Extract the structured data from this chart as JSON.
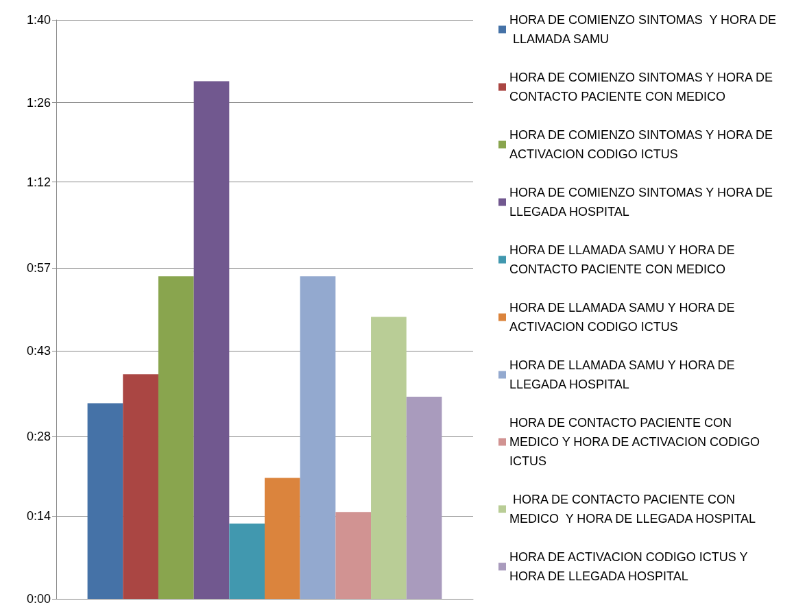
{
  "chart_data": {
    "type": "bar",
    "categories": [
      null
    ],
    "ylim": [
      0,
      100
    ],
    "yticks": [
      {
        "value": 0,
        "label": "0:00"
      },
      {
        "value": 14.2857,
        "label": "0:14"
      },
      {
        "value": 28,
        "label": "0:28"
      },
      {
        "value": 42.8571,
        "label": "0:43"
      },
      {
        "value": 57.1429,
        "label": "0:57"
      },
      {
        "value": 72,
        "label": "1:12"
      },
      {
        "value": 85.7143,
        "label": "1:26"
      },
      {
        "value": 100,
        "label": "1:40"
      }
    ],
    "grid": "y",
    "legend": "right",
    "series": [
      {
        "name": "HORA DE COMIENZO SINTOMAS  Y HORA DE LLAMADA SAMU",
        "color": "#4572a7",
        "values": [
          33.8
        ]
      },
      {
        "name": "HORA DE COMIENZO SINTOMAS Y HORA DE CONTACTO PACIENTE CON MEDICO",
        "color": "#aa4643",
        "values": [
          38.8
        ]
      },
      {
        "name": "HORA DE COMIENZO SINTOMAS Y HORA DE ACTIVACION CODIGO ICTUS",
        "color": "#89a54e",
        "values": [
          55.7
        ]
      },
      {
        "name": "HORA DE COMIENZO SINTOMAS Y HORA DE LLEGADA HOSPITAL",
        "color": "#71588f",
        "values": [
          89.4
        ]
      },
      {
        "name": "HORA DE LLAMADA SAMU Y HORA DE CONTACTO PACIENTE CON MEDICO",
        "color": "#4198af",
        "values": [
          13.0
        ]
      },
      {
        "name": "HORA DE LLAMADA SAMU Y HORA DE ACTIVACION CODIGO ICTUS",
        "color": "#db843d",
        "values": [
          20.9
        ]
      },
      {
        "name": "HORA DE LLAMADA SAMU Y HORA DE LLEGADA HOSPITAL",
        "color": "#93a9cf",
        "values": [
          55.7
        ]
      },
      {
        "name": "HORA DE CONTACTO PACIENTE CON MEDICO Y HORA DE ACTIVACION CODIGO ICTUS",
        "color": "#d19392",
        "values": [
          15.0
        ]
      },
      {
        "name": " HORA DE CONTACTO PACIENTE CON MEDICO  Y HORA DE LLEGADA HOSPITAL",
        "color": "#b9cd96",
        "values": [
          48.7
        ]
      },
      {
        "name": "HORA DE ACTIVACION CODIGO ICTUS Y HORA DE LLEGADA HOSPITAL",
        "color": "#a99bbd",
        "values": [
          34.9
        ]
      }
    ]
  }
}
